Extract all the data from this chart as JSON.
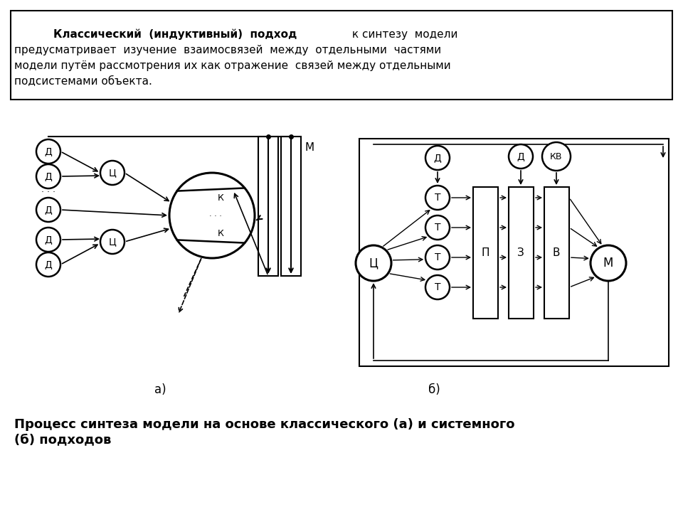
{
  "bg_color": "#ffffff",
  "caption": "Процесс синтеза модели на основе классического (а) и системного\n(б) подходов",
  "label_a": "а)",
  "label_b": "б)"
}
